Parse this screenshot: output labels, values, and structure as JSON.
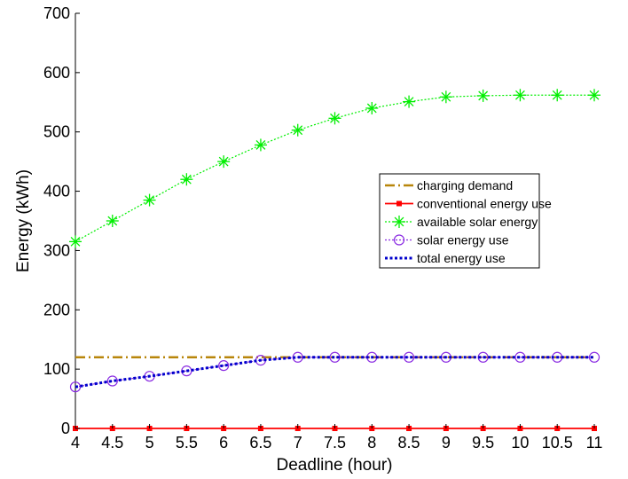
{
  "chart_data": {
    "type": "line",
    "title": "",
    "xlabel": "Deadline (hour)",
    "ylabel": "Energy (kWh)",
    "xlim": [
      4,
      11
    ],
    "ylim": [
      0,
      700
    ],
    "x_ticks": [
      4,
      4.5,
      5,
      5.5,
      6,
      6.5,
      7,
      7.5,
      8,
      8.5,
      9,
      9.5,
      10,
      10.5,
      11
    ],
    "x_tick_labels": [
      "4",
      "4.5",
      "5",
      "5.5",
      "6",
      "6.5",
      "7",
      "7.5",
      "8",
      "8.5",
      "9",
      "9.5",
      "10",
      "10.5",
      "11"
    ],
    "y_ticks": [
      0,
      100,
      200,
      300,
      400,
      500,
      600,
      700
    ],
    "y_tick_labels": [
      "0",
      "100",
      "200",
      "300",
      "400",
      "500",
      "600",
      "700"
    ],
    "grid": false,
    "legend_position": "right",
    "x": [
      4,
      4.5,
      5,
      5.5,
      6,
      6.5,
      7,
      7.5,
      8,
      8.5,
      9,
      9.5,
      10,
      10.5,
      11
    ],
    "series": [
      {
        "name": "charging demand",
        "color": "#b8860b",
        "style": "dashdot",
        "marker": "none",
        "values": [
          120,
          120,
          120,
          120,
          120,
          120,
          120,
          120,
          120,
          120,
          120,
          120,
          120,
          120,
          120
        ]
      },
      {
        "name": "conventional energy use",
        "color": "#ff0000",
        "style": "solid",
        "marker": "square",
        "values": [
          0,
          0,
          0,
          0,
          0,
          0,
          0,
          0,
          0,
          0,
          0,
          0,
          0,
          0,
          0
        ]
      },
      {
        "name": "available solar energy",
        "color": "#00ee00",
        "style": "dotted",
        "marker": "asterisk",
        "values": [
          315,
          350,
          385,
          420,
          450,
          478,
          503,
          523,
          540,
          551,
          559,
          561,
          562,
          562,
          562
        ]
      },
      {
        "name": "solar energy use",
        "color": "#8a2be2",
        "style": "dotted",
        "marker": "circle",
        "values": [
          70,
          80,
          88,
          97,
          106,
          115,
          120,
          120,
          120,
          120,
          120,
          120,
          120,
          120,
          120
        ]
      },
      {
        "name": "total energy use",
        "color": "#0000cc",
        "style": "thick-dotted",
        "marker": "none",
        "values": [
          70,
          80,
          88,
          97,
          106,
          115,
          120,
          120,
          120,
          120,
          120,
          120,
          120,
          120,
          120
        ]
      }
    ]
  }
}
